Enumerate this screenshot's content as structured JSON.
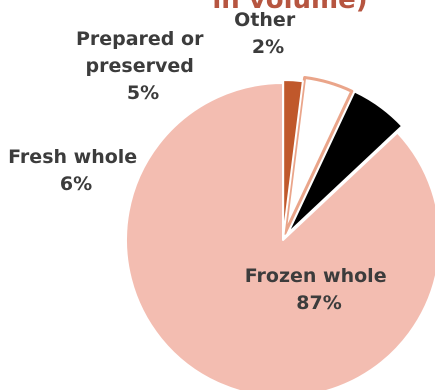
{
  "chart_data": {
    "type": "pie",
    "title": "in volume)",
    "slices": [
      {
        "name": "Frozen whole",
        "value": 87,
        "label": "87%",
        "color": "#f3bdb1",
        "stroke": "#ffffff"
      },
      {
        "name": "Fresh whole",
        "value": 6,
        "label": "6%",
        "color": "#000000",
        "stroke": "#ffffff"
      },
      {
        "name": "Prepared or preserved",
        "value": 5,
        "label": "5%",
        "color": "#ffffff",
        "stroke": "#eaa58a"
      },
      {
        "name": "Other",
        "value": 2,
        "label": "2%",
        "color": "#c0582b",
        "stroke": "#ffffff"
      }
    ],
    "colors": {
      "title": "#b65540",
      "label_text": "#3c3c3c"
    }
  }
}
